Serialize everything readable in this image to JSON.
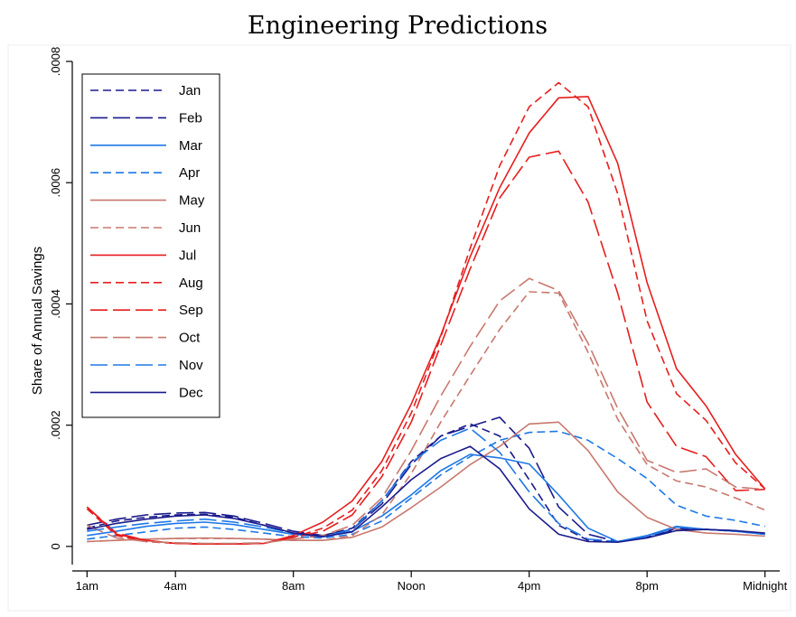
{
  "chart_data": {
    "type": "line",
    "title": "Engineering Predictions",
    "xlabel": "",
    "ylabel": "Share of Annual Savings",
    "x": [
      1,
      2,
      3,
      4,
      5,
      6,
      7,
      8,
      9,
      10,
      11,
      12,
      13,
      14,
      15,
      16,
      17,
      18,
      19,
      20,
      21,
      22,
      23,
      24
    ],
    "xticks": [
      {
        "x": 1,
        "label": "1am"
      },
      {
        "x": 4,
        "label": "4am"
      },
      {
        "x": 8,
        "label": "8am"
      },
      {
        "x": 12,
        "label": "Noon"
      },
      {
        "x": 16,
        "label": "4pm"
      },
      {
        "x": 20,
        "label": "8pm"
      },
      {
        "x": 24,
        "label": "Midnight"
      }
    ],
    "yticks": [
      {
        "y": 0,
        "label": "0"
      },
      {
        "y": 0.0002,
        "label": ".0002"
      },
      {
        "y": 0.0004,
        "label": ".0004"
      },
      {
        "y": 0.0006,
        "label": ".0006"
      },
      {
        "y": 0.0008,
        "label": ".0008"
      }
    ],
    "xlim": [
      0.5,
      24.5
    ],
    "ylim": [
      -3e-05,
      0.0008
    ],
    "grid": false,
    "legend_position": "top-left",
    "series": [
      {
        "name": "Jan",
        "color": "#1a1a8c",
        "dash": "short",
        "values": [
          3e-05,
          4.2e-05,
          4.8e-05,
          5.2e-05,
          5.3e-05,
          4.8e-05,
          3.5e-05,
          2.2e-05,
          1.8e-05,
          3e-05,
          7.5e-05,
          0.00014,
          0.000182,
          0.000202,
          0.000182,
          0.00011,
          3.5e-05,
          1e-05,
          8e-06,
          1.5e-05,
          3e-05,
          2.8e-05,
          2.5e-05,
          2e-05
        ]
      },
      {
        "name": "Feb",
        "color": "#1a1a8c",
        "dash": "long",
        "values": [
          3.5e-05,
          4.5e-05,
          5.2e-05,
          5.5e-05,
          5.6e-05,
          5e-05,
          3.8e-05,
          2.5e-05,
          1.8e-05,
          2.8e-05,
          7e-05,
          0.000135,
          0.000182,
          0.000198,
          0.000213,
          0.000162,
          6.5e-05,
          2e-05,
          8e-06,
          1.5e-05,
          2.8e-05,
          2.8e-05,
          2.6e-05,
          2e-05
        ]
      },
      {
        "name": "Mar",
        "color": "#1e78e6",
        "dash": "solid",
        "values": [
          1.8e-05,
          2.5e-05,
          3.3e-05,
          3.8e-05,
          4e-05,
          3.6e-05,
          2.8e-05,
          2e-05,
          1.6e-05,
          2.5e-05,
          5e-05,
          8.5e-05,
          0.000125,
          0.000152,
          0.000146,
          0.000136,
          8.5e-05,
          3e-05,
          8e-06,
          1.8e-05,
          3.3e-05,
          2.8e-05,
          2.5e-05,
          2e-05
        ]
      },
      {
        "name": "Apr",
        "color": "#1e78e6",
        "dash": "short",
        "values": [
          1.2e-05,
          1.8e-05,
          2.4e-05,
          3e-05,
          3.2e-05,
          2.8e-05,
          2.2e-05,
          1.6e-05,
          1.4e-05,
          2e-05,
          4.2e-05,
          8e-05,
          0.000118,
          0.000148,
          0.000175,
          0.000188,
          0.00019,
          0.000175,
          0.000145,
          0.000112,
          6.8e-05,
          5e-05,
          4.3e-05,
          3.3e-05
        ]
      },
      {
        "name": "May",
        "color": "#c8786e",
        "dash": "solid",
        "values": [
          8e-06,
          1e-05,
          1.2e-05,
          1.3e-05,
          1.4e-05,
          1.3e-05,
          1.2e-05,
          1e-05,
          1e-05,
          1.5e-05,
          3.2e-05,
          6.4e-05,
          9.8e-05,
          0.000135,
          0.000165,
          0.000202,
          0.000205,
          0.000158,
          9e-05,
          4.8e-05,
          2.8e-05,
          2.2e-05,
          2e-05,
          1.7e-05
        ]
      },
      {
        "name": "Jun",
        "color": "#c8786e",
        "dash": "short",
        "values": [
          8e-06,
          1e-05,
          1.2e-05,
          1.3e-05,
          1.3e-05,
          1.3e-05,
          1.2e-05,
          1e-05,
          1e-05,
          1.8e-05,
          5.2e-05,
          0.00012,
          0.000205,
          0.000282,
          0.000358,
          0.00042,
          0.000418,
          0.00032,
          0.00021,
          0.000135,
          0.000108,
          9.8e-05,
          8e-05,
          6e-05
        ]
      },
      {
        "name": "Jul",
        "color": "#e61e1e",
        "dash": "solid",
        "values": [
          6.5e-05,
          2e-05,
          1e-05,
          5e-06,
          4e-06,
          4e-06,
          5e-06,
          1.8e-05,
          4e-05,
          7.5e-05,
          0.00014,
          0.000235,
          0.000348,
          0.000478,
          0.000592,
          0.000682,
          0.00074,
          0.000742,
          0.000632,
          0.000435,
          0.000293,
          0.000232,
          0.000152,
          9.5e-05
        ]
      },
      {
        "name": "Aug",
        "color": "#e61e1e",
        "dash": "short",
        "values": [
          6.2e-05,
          1.8e-05,
          8e-06,
          5e-06,
          4e-06,
          4e-06,
          5e-06,
          1.5e-05,
          3e-05,
          6e-05,
          0.000125,
          0.00022,
          0.000345,
          0.000492,
          0.000628,
          0.000725,
          0.000765,
          0.000725,
          0.000582,
          0.000372,
          0.000252,
          0.000208,
          0.000138,
          9.5e-05
        ]
      },
      {
        "name": "Sep",
        "color": "#e61e1e",
        "dash": "long",
        "values": [
          6.5e-05,
          2.2e-05,
          1e-05,
          5e-06,
          4e-06,
          4e-06,
          5e-06,
          1.5e-05,
          2.5e-05,
          5.2e-05,
          0.000115,
          0.000205,
          0.000332,
          0.000458,
          0.000575,
          0.000642,
          0.000652,
          0.000568,
          0.000418,
          0.000238,
          0.000165,
          0.000148,
          9.2e-05,
          9.4e-05
        ]
      },
      {
        "name": "Oct",
        "color": "#c8786e",
        "dash": "long",
        "values": [
          3.5e-05,
          1.4e-05,
          8e-06,
          6e-06,
          5e-06,
          5e-06,
          6e-06,
          1.2e-05,
          1.8e-05,
          3.5e-05,
          8e-05,
          0.000158,
          0.000248,
          0.00033,
          0.000405,
          0.000442,
          0.000422,
          0.000335,
          0.000228,
          0.000142,
          0.000122,
          0.000128,
          9.8e-05,
          9.4e-05
        ]
      },
      {
        "name": "Nov",
        "color": "#1e78e6",
        "dash": "long",
        "values": [
          2.5e-05,
          3.2e-05,
          3.8e-05,
          4.2e-05,
          4.5e-05,
          4e-05,
          3.2e-05,
          2.2e-05,
          1.6e-05,
          2.8e-05,
          7.5e-05,
          0.000138,
          0.000175,
          0.000195,
          0.000155,
          9e-05,
          3.8e-05,
          1.2e-05,
          8e-06,
          1.6e-05,
          3.2e-05,
          2.8e-05,
          2.6e-05,
          2e-05
        ]
      },
      {
        "name": "Dec",
        "color": "#1a1a8c",
        "dash": "solid",
        "values": [
          2.8e-05,
          3.8e-05,
          4.5e-05,
          5e-05,
          5.2e-05,
          4.6e-05,
          3.5e-05,
          2.2e-05,
          1.6e-05,
          2.4e-05,
          6.5e-05,
          0.00011,
          0.000145,
          0.000165,
          0.000128,
          6.2e-05,
          2e-05,
          8e-06,
          7e-06,
          1.4e-05,
          2.6e-05,
          2.8e-05,
          2.6e-05,
          2.2e-05
        ]
      }
    ]
  }
}
